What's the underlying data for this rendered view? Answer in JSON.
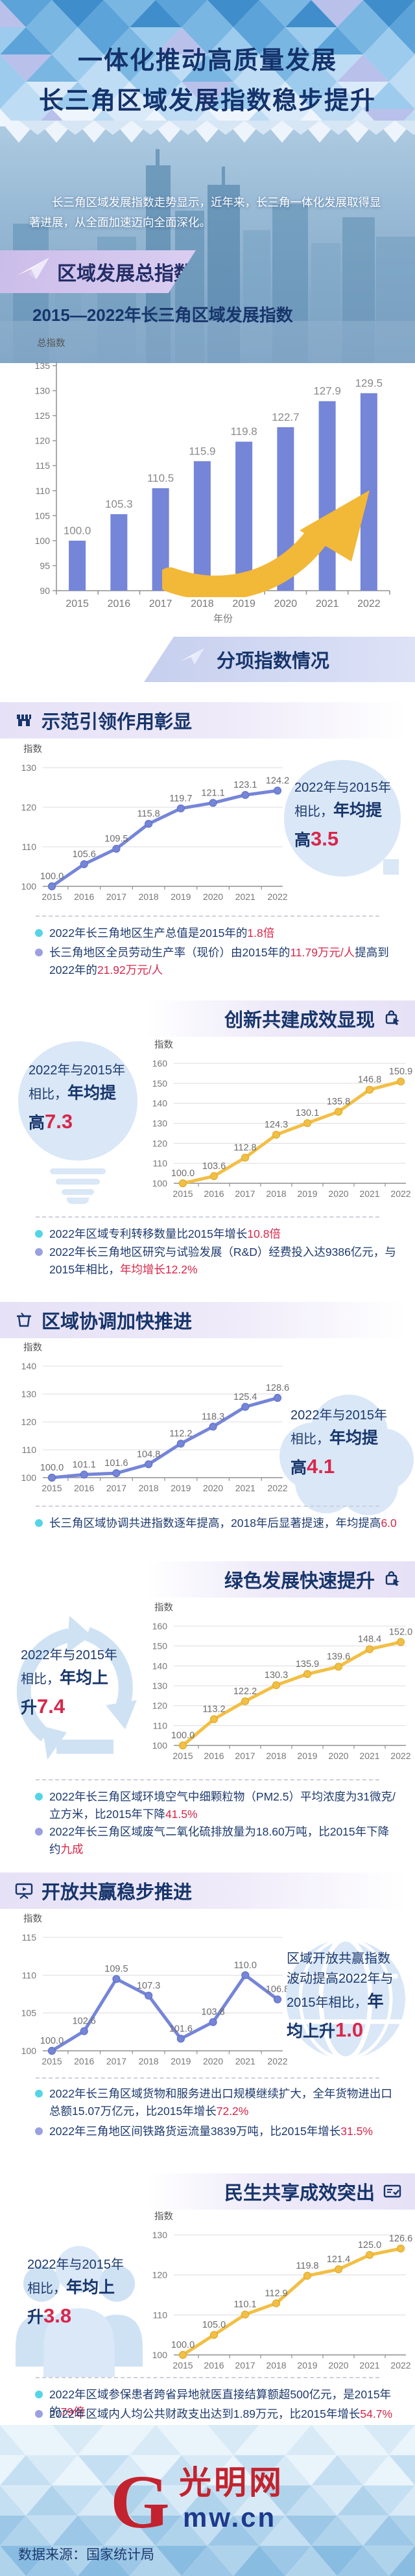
{
  "header": {
    "title_line1": "一体化推动高质量发展",
    "title_line2": "长三角区域发展指数稳步提升",
    "intro": "长三角区域发展指数走势显示，近年来，长三角一体化发展取得显著进展，从全面加速迈向全面深化。",
    "overview_tag": "区域发展总指数"
  },
  "banner": {
    "label": "分项指数情况"
  },
  "chart_data": [
    {
      "type": "bar",
      "title": "2015—2022年长三角区域发展指数",
      "ylabel": "总指数",
      "xlabel": "年份",
      "categories": [
        "2015",
        "2016",
        "2017",
        "2018",
        "2019",
        "2020",
        "2021",
        "2022"
      ],
      "values": [
        100.0,
        105.3,
        110.5,
        115.9,
        119.8,
        122.7,
        127.9,
        129.5
      ],
      "ylim": [
        90,
        135
      ],
      "ytick": 5,
      "ml": 52,
      "color": "#7585d8",
      "grid": false
    },
    {
      "type": "line",
      "ylabel": "指数",
      "categories": [
        "2015",
        "2016",
        "2017",
        "2018",
        "2019",
        "2020",
        "2021",
        "2022"
      ],
      "values": [
        100.0,
        105.6,
        109.5,
        115.8,
        119.7,
        121.1,
        123.1,
        124.2
      ],
      "ylim": [
        100,
        130
      ],
      "ytick": 10,
      "ml": 46,
      "color": "#7585d8",
      "marker_stroke": "#6272c9",
      "grid": true
    },
    {
      "type": "line",
      "ylabel": "指数",
      "categories": [
        "2015",
        "2016",
        "2017",
        "2018",
        "2019",
        "2020",
        "2021",
        "2022"
      ],
      "values": [
        100.0,
        103.6,
        112.8,
        124.3,
        130.1,
        135.8,
        146.8,
        150.9
      ],
      "ylim": [
        100,
        160
      ],
      "ytick": 10,
      "ml": 46,
      "color": "#f2bf45",
      "marker_stroke": "#e2ab2d",
      "grid": true
    },
    {
      "type": "line",
      "ylabel": "指数",
      "categories": [
        "2015",
        "2016",
        "2017",
        "2018",
        "2019",
        "2020",
        "2021",
        "2022"
      ],
      "values": [
        100.0,
        101.1,
        101.6,
        104.8,
        112.2,
        118.3,
        125.4,
        128.6
      ],
      "ylim": [
        100,
        140
      ],
      "ytick": 10,
      "ml": 46,
      "color": "#7585d8",
      "marker_stroke": "#6272c9",
      "grid": true
    },
    {
      "type": "line",
      "ylabel": "指数",
      "categories": [
        "2015",
        "2016",
        "2017",
        "2018",
        "2019",
        "2020",
        "2021",
        "2022"
      ],
      "values": [
        100.0,
        113.2,
        122.2,
        130.3,
        135.9,
        139.6,
        148.4,
        152.0
      ],
      "ylim": [
        100,
        160
      ],
      "ytick": 10,
      "ml": 46,
      "color": "#f2bf45",
      "marker_stroke": "#e2ab2d",
      "grid": true
    },
    {
      "type": "line",
      "ylabel": "指数",
      "categories": [
        "2015",
        "2016",
        "2017",
        "2018",
        "2019",
        "2020",
        "2021",
        "2022"
      ],
      "values": [
        100.0,
        102.6,
        109.5,
        107.3,
        101.6,
        103.8,
        110.0,
        106.8
      ],
      "ylim": [
        100,
        115
      ],
      "ytick": 5,
      "ml": 46,
      "color": "#7585d8",
      "marker_stroke": "#6272c9",
      "grid": true
    },
    {
      "type": "line",
      "ylabel": "指数",
      "categories": [
        "2015",
        "2016",
        "2017",
        "2018",
        "2019",
        "2020",
        "2021",
        "2022"
      ],
      "values": [
        100.0,
        105.0,
        110.1,
        112.9,
        119.8,
        121.4,
        125.0,
        126.6
      ],
      "ylim": [
        100,
        130
      ],
      "ytick": 10,
      "ml": 46,
      "color": "#f2bf45",
      "marker_stroke": "#e2ab2d",
      "grid": true
    }
  ],
  "sections": [
    {
      "title": "示范引领作用彰显",
      "callout": {
        "lines": [
          [
            {
              "t": "2022年与2015年",
              "k": "n"
            }
          ],
          [
            {
              "t": "相比，",
              "k": "n"
            },
            {
              "t": "年均提",
              "k": "b"
            }
          ],
          [
            {
              "t": "高",
              "k": "b"
            },
            {
              "t": "3.5",
              "k": "r"
            }
          ]
        ]
      },
      "bullets": [
        {
          "segs": [
            {
              "t": "2022年长三角地区生产总值是2015年的",
              "k": "n"
            },
            {
              "t": "1.8倍",
              "k": "r"
            }
          ]
        },
        {
          "segs": [
            {
              "t": "长三角地区全员劳动生产率（现价）由2015年的",
              "k": "n"
            },
            {
              "t": "11.79万元/人",
              "k": "r"
            },
            {
              "t": "提高到2022年的",
              "k": "n"
            },
            {
              "t": "21.92万元/人",
              "k": "r"
            }
          ]
        }
      ]
    },
    {
      "title": "创新共建成效显现",
      "callout": {
        "lines": [
          [
            {
              "t": "2022年与2015年",
              "k": "n"
            }
          ],
          [
            {
              "t": "相比，",
              "k": "n"
            },
            {
              "t": "年均提",
              "k": "b"
            }
          ],
          [
            {
              "t": "高",
              "k": "b"
            },
            {
              "t": "7.3",
              "k": "r"
            }
          ]
        ]
      },
      "bullets": [
        {
          "segs": [
            {
              "t": "2022年区域专利转移数量比2015年增长",
              "k": "n"
            },
            {
              "t": "10.8倍",
              "k": "r"
            }
          ]
        },
        {
          "segs": [
            {
              "t": "2022年长三角地区研究与试验发展（R&D）经费投入达9386亿元，与2015年相比，",
              "k": "n"
            },
            {
              "t": "年均增长12.2%",
              "k": "r"
            }
          ]
        }
      ]
    },
    {
      "title": "区域协调加快推进",
      "callout": {
        "lines": [
          [
            {
              "t": "2022年与2015年",
              "k": "n"
            }
          ],
          [
            {
              "t": "相比，",
              "k": "n"
            },
            {
              "t": "年均提",
              "k": "b"
            }
          ],
          [
            {
              "t": "高",
              "k": "b"
            },
            {
              "t": "4.1",
              "k": "r"
            }
          ]
        ]
      },
      "bullets": [
        {
          "segs": [
            {
              "t": "长三角区域协调共进指数逐年提高，2018年后显著提速，年均提高",
              "k": "n"
            },
            {
              "t": "6.0",
              "k": "r"
            }
          ]
        }
      ]
    },
    {
      "title": "绿色发展快速提升",
      "callout": {
        "lines": [
          [
            {
              "t": "2022年与2015年",
              "k": "n"
            }
          ],
          [
            {
              "t": "相比，",
              "k": "n"
            },
            {
              "t": "年均上",
              "k": "b"
            }
          ],
          [
            {
              "t": "升",
              "k": "b"
            },
            {
              "t": "7.4",
              "k": "r"
            }
          ]
        ]
      },
      "bullets": [
        {
          "segs": [
            {
              "t": "2022年长三角区域环境空气中细颗粒物（PM2.5）平均浓度为31微克/立方米，比2015年下降",
              "k": "n"
            },
            {
              "t": "41.5%",
              "k": "r"
            }
          ]
        },
        {
          "segs": [
            {
              "t": "2022年长三角区域废气二氧化硫排放量为18.60万吨，比2015年下降约",
              "k": "n"
            },
            {
              "t": "九成",
              "k": "r"
            }
          ]
        }
      ]
    },
    {
      "title": "开放共赢稳步推进",
      "callout": {
        "lines": [
          [
            {
              "t": "区域开放共赢指数",
              "k": "n"
            }
          ],
          [
            {
              "t": "波动提高2022年与",
              "k": "n"
            }
          ],
          [
            {
              "t": "2015年相比，",
              "k": "n"
            },
            {
              "t": "年",
              "k": "b"
            }
          ],
          [
            {
              "t": "均上升",
              "k": "b"
            },
            {
              "t": "1.0",
              "k": "r"
            }
          ]
        ]
      },
      "bullets": [
        {
          "segs": [
            {
              "t": "2022年长三角区域货物和服务进出口规模继续扩大，全年货物进出口总额15.07万亿元，比2015年增长",
              "k": "n"
            },
            {
              "t": "72.2%",
              "k": "r"
            }
          ]
        },
        {
          "segs": [
            {
              "t": "2022年三角地区间铁路货运流量3839万吨，比2015年增长",
              "k": "n"
            },
            {
              "t": "31.5%",
              "k": "r"
            }
          ]
        }
      ]
    },
    {
      "title": "民生共享成效突出",
      "callout": {
        "lines": [
          [
            {
              "t": "2022年与2015年",
              "k": "n"
            }
          ],
          [
            {
              "t": "相比，",
              "k": "n"
            },
            {
              "t": "年均上",
              "k": "b"
            }
          ],
          [
            {
              "t": "升",
              "k": "b"
            },
            {
              "t": "3.8",
              "k": "r"
            }
          ]
        ]
      },
      "bullets": [
        {
          "segs": [
            {
              "t": "2022年区域参保患者跨省异地就医直接结算额超500亿元，是2015年的",
              "k": "n"
            },
            {
              "t": "79倍",
              "k": "r"
            }
          ]
        },
        {
          "segs": [
            {
              "t": "2022年区域内人均公共财政支出达到1.89万元，比2015年增长",
              "k": "n"
            },
            {
              "t": "54.7%",
              "k": "r"
            }
          ]
        }
      ]
    }
  ],
  "footer": {
    "logo_g": "G",
    "logo_cn": "光明网",
    "logo_domain": "mw.cn",
    "source": "数据来源：国家统计局"
  },
  "colors": {
    "navy": "#17356b",
    "red": "#d8274b",
    "series_blue": "#7585d8",
    "series_gold": "#f2bf45",
    "callout_bg": "#d9e7f7",
    "accent_gold_arrow": "#f2b838"
  }
}
